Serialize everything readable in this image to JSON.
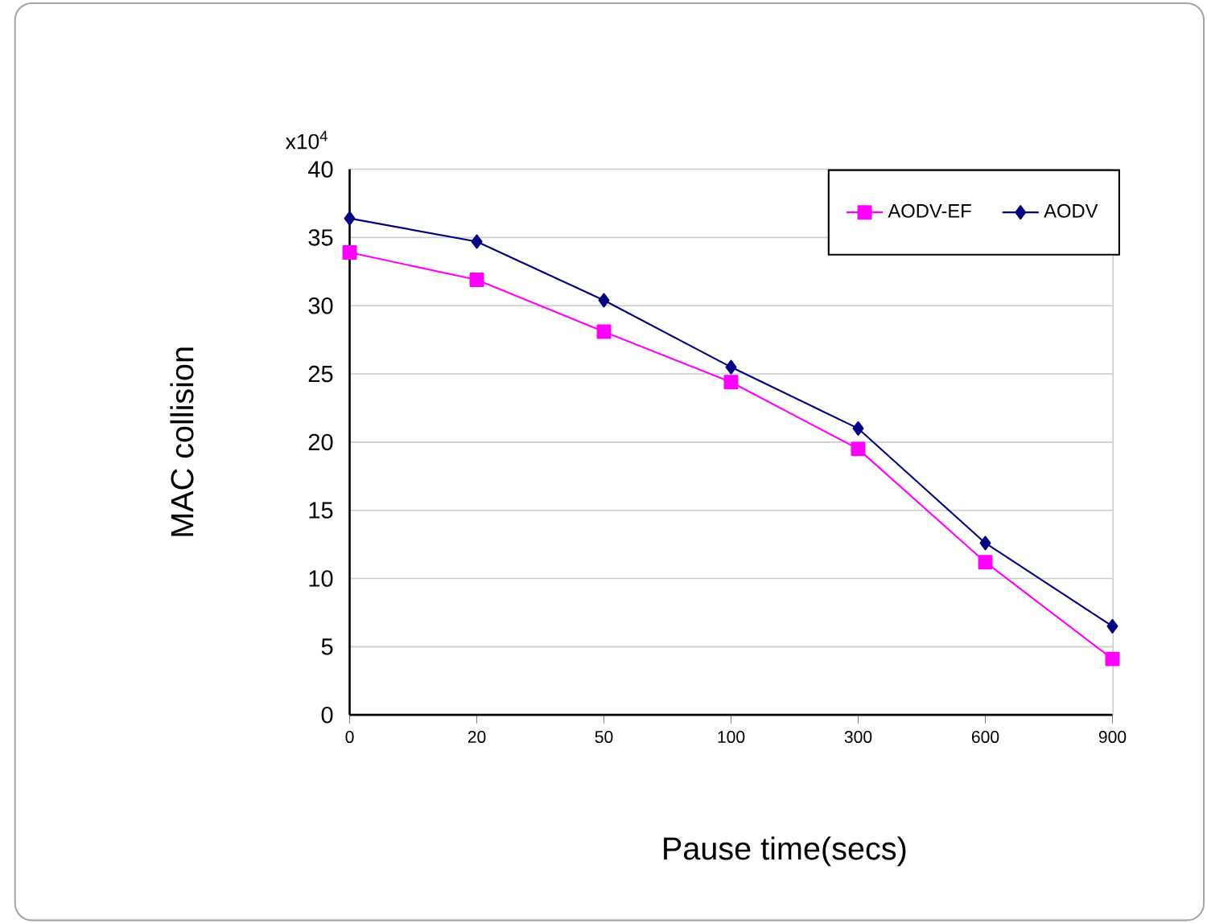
{
  "chart_data": {
    "type": "line",
    "categories": [
      "0",
      "20",
      "50",
      "100",
      "300",
      "600",
      "900"
    ],
    "series": [
      {
        "name": "AODV-EF",
        "color": "#ff00ff",
        "marker": "square",
        "values": [
          33.9,
          31.9,
          28.1,
          24.4,
          19.5,
          11.2,
          4.1
        ]
      },
      {
        "name": "AODV",
        "color": "#000080",
        "marker": "diamond",
        "values": [
          36.4,
          34.7,
          30.4,
          25.5,
          21.0,
          12.6,
          6.5
        ]
      }
    ],
    "xlabel": "Pause time(secs)",
    "ylabel": "MAC collision",
    "annotations": [
      "x10$^{4}$"
    ],
    "ylim": [
      0,
      40
    ],
    "yticks": [
      0,
      5,
      10,
      15,
      20,
      25,
      30,
      35,
      40
    ],
    "grid": "y",
    "legend": "top right"
  }
}
